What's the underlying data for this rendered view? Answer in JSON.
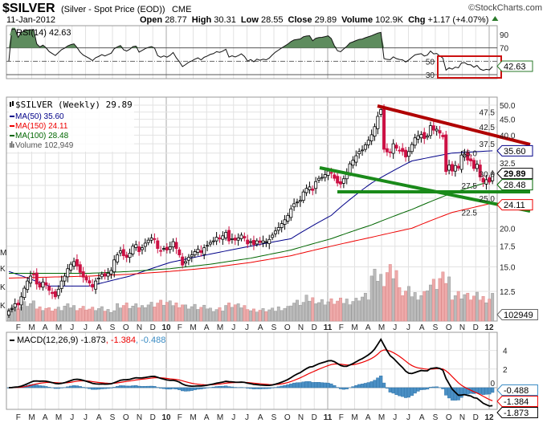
{
  "header": {
    "symbol": "$SILVER",
    "description": "(Silver - Spot Price (EOD))",
    "exchange": "CME",
    "copyright": "©StockCharts.com",
    "date": "11-Jan-2012",
    "open_label": "Open",
    "open": "28.77",
    "high_label": "High",
    "high": "30.31",
    "low_label": "Low",
    "low": "28.55",
    "close_label": "Close",
    "close": "29.89",
    "volume_label": "Volume",
    "volume": "102.9K",
    "chg_label": "Chg",
    "chg": "+1.17 (+4.07%)"
  },
  "colors": {
    "up": "#ffffff",
    "down": "#cc1144",
    "ma50": "#000088",
    "ma150": "#ee0000",
    "ma100": "#006600",
    "rsi_fill": "#5e8c5e",
    "macd": "#000000",
    "signal": "#ee0000",
    "hist": "#4a8fc4",
    "trend_red": "#b00000",
    "trend_green": "#1a8a1a"
  },
  "chart_data": [
    {
      "type": "line",
      "title": "RSI(14) 42.63",
      "indicator": "RSI(14)",
      "last_value": "42.63",
      "ylim": [
        10,
        100
      ],
      "y_ticks": [
        "90",
        "70",
        "50",
        "30"
      ],
      "levels": [
        70,
        50,
        30
      ]
    },
    {
      "type": "candlestick",
      "title": "$SILVER (Weekly) 29.89",
      "scale": "log",
      "ylim": [
        10.5,
        52
      ],
      "y_ticks": [
        "50.0",
        "47.5",
        "45.0",
        "42.5",
        "40.0",
        "37.5",
        "35.0",
        "32.5",
        "30.0",
        "27.5",
        "25.0",
        "22.5",
        "20.0",
        "17.5",
        "15.0",
        "12.5"
      ],
      "start": "2009-01",
      "closes": [
        10.8,
        11.0,
        11.4,
        11.3,
        12.0,
        12.8,
        13.5,
        14.0,
        14.2,
        13.2,
        12.9,
        13.4,
        13.1,
        12.6,
        12.3,
        12.0,
        12.7,
        13.5,
        14.0,
        14.8,
        15.3,
        15.6,
        15.1,
        14.4,
        13.9,
        13.6,
        13.3,
        12.9,
        13.5,
        13.8,
        14.2,
        14.0,
        14.3,
        14.6,
        15.8,
        16.4,
        16.9,
        16.3,
        16.1,
        16.6,
        17.5,
        17.7,
        16.8,
        17.3,
        17.9,
        18.3,
        18.6,
        18.4,
        17.2,
        16.9,
        17.2,
        17.0,
        17.4,
        18.1,
        17.2,
        16.4,
        15.2,
        15.6,
        16.1,
        16.4,
        16.8,
        17.1,
        16.7,
        17.3,
        17.6,
        18.0,
        18.2,
        18.7,
        18.6,
        18.9,
        19.4,
        18.2,
        18.5,
        18.3,
        18.6,
        19.0,
        18.6,
        17.8,
        18.1,
        17.7,
        18.2,
        18.0,
        18.2,
        18.1,
        18.4,
        19.0,
        19.6,
        20.1,
        20.7,
        21.3,
        22.0,
        23.1,
        24.0,
        24.3,
        24.6,
        26.2,
        26.9,
        27.2,
        26.5,
        28.3,
        29.0,
        29.2,
        29.8,
        30.6,
        30.2,
        29.0,
        28.0,
        27.8,
        28.9,
        30.2,
        32.3,
        33.2,
        34.3,
        35.4,
        35.8,
        37.2,
        38.5,
        40.1,
        42.6,
        46.0,
        48.4,
        36.0,
        35.3,
        35.1,
        37.5,
        36.3,
        35.7,
        35.4,
        34.0,
        35.4,
        37.3,
        39.2,
        39.8,
        40.2,
        39.0,
        39.7,
        42.9,
        41.5,
        41.8,
        40.6,
        39.5,
        30.5,
        32.0,
        30.6,
        31.9,
        31.3,
        34.5,
        34.7,
        33.2,
        33.0,
        31.2,
        32.2,
        29.3,
        28.2,
        28.7,
        28.2,
        29.89
      ],
      "moving_averages": [
        {
          "name": "MA(50)",
          "label": "MA(50) 35.60",
          "last": "35.60",
          "anchors_quarterly": [
            14.5,
            13.0,
            13.0,
            14.0,
            15.5,
            16.5,
            17.5,
            18.5,
            22.0,
            28.0,
            33.0,
            35.0,
            35.6
          ]
        },
        {
          "name": "MA(150)",
          "label": "MA(150) 24.11",
          "last": "24.11",
          "anchors_quarterly": [
            13.8,
            13.9,
            14.0,
            14.2,
            14.5,
            14.9,
            15.5,
            16.3,
            17.5,
            18.7,
            20.0,
            22.5,
            24.11
          ]
        },
        {
          "name": "MA(100)",
          "label": "MA(100) 28.48",
          "last": "28.48",
          "anchors_quarterly": [
            14.3,
            14.3,
            14.3,
            14.5,
            14.8,
            15.3,
            16.0,
            17.0,
            18.5,
            20.5,
            23.0,
            26.0,
            28.48
          ]
        }
      ],
      "volume": {
        "label": "Volume 102,949",
        "last": "102949",
        "monthly_k": [
          60,
          70,
          55,
          50,
          60,
          55,
          50,
          45,
          65,
          60,
          70,
          75,
          70,
          60,
          55,
          50,
          65,
          60,
          45,
          45,
          55,
          75,
          90,
          80,
          80,
          85,
          100,
          180,
          210,
          120,
          110,
          150,
          170,
          110,
          100,
          95,
          103
        ],
        "axis_labels": [
          "M",
          "K",
          "K",
          "K"
        ]
      }
    },
    {
      "type": "line",
      "title": "MACD(12,26,9)",
      "macd": "-1.873",
      "signal": "-1.384",
      "histogram": "-0.488",
      "y_ticks": [
        "4",
        "2",
        "0"
      ]
    }
  ],
  "x_axis": {
    "labels": [
      "F",
      "M",
      "A",
      "M",
      "J",
      "J",
      "A",
      "S",
      "O",
      "N",
      "D",
      "10",
      "F",
      "M",
      "A",
      "M",
      "J",
      "J",
      "A",
      "S",
      "O",
      "N",
      "D",
      "11",
      "F",
      "M",
      "A",
      "M",
      "J",
      "J",
      "A",
      "S",
      "O",
      "N",
      "D",
      "12"
    ]
  }
}
